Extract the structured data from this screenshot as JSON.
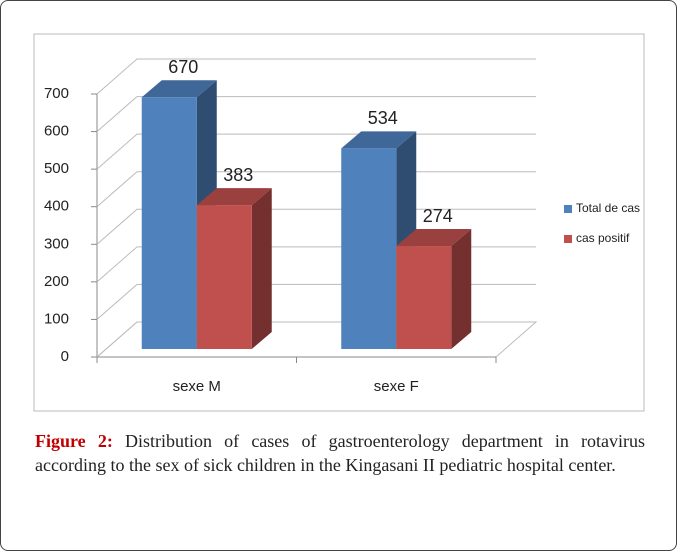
{
  "chart_data": {
    "type": "bar",
    "categories": [
      "sexe M",
      "sexe F"
    ],
    "series": [
      {
        "name": "Total de cas",
        "color": "#4f81bd",
        "values": [
          670,
          534
        ]
      },
      {
        "name": "cas positif",
        "color": "#c0504d",
        "values": [
          383,
          274
        ]
      }
    ],
    "ylim": [
      0,
      700
    ],
    "yticks": [
      0,
      100,
      200,
      300,
      400,
      500,
      600,
      700
    ],
    "grid": true,
    "legend": "right"
  },
  "caption": {
    "label": "Figure 2:",
    "text": "Distribution of cases of gastroenterology department in rotavirus according to the sex of sick children in the Kingasani II pediatric hospital center."
  }
}
